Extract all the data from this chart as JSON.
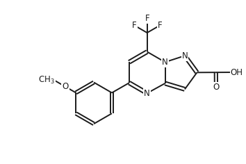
{
  "bg_color": "#ffffff",
  "line_color": "#1a1a1a",
  "line_width": 1.4,
  "font_size": 8.5,
  "fig_width": 3.54,
  "fig_height": 2.36,
  "dpi": 100,
  "xlim": [
    0,
    10
  ],
  "ylim": [
    0,
    6.67
  ]
}
